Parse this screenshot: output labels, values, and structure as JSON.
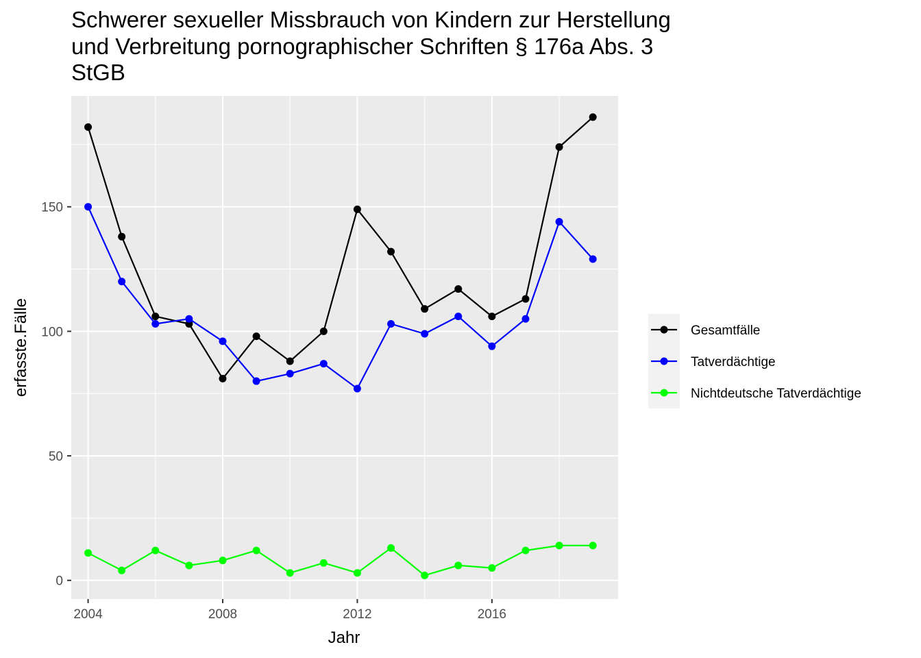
{
  "chart_data": {
    "type": "line",
    "title_lines": [
      "Schwerer sexueller Missbrauch von Kindern zur Herstellung",
      "und Verbreitung pornographischer Schriften § 176a Abs. 3",
      "StGB"
    ],
    "xlabel": "Jahr",
    "ylabel": "erfasste.Fälle",
    "x": [
      2004,
      2005,
      2006,
      2007,
      2008,
      2009,
      2010,
      2011,
      2012,
      2013,
      2014,
      2015,
      2016,
      2017,
      2018,
      2019
    ],
    "x_ticks": [
      2004,
      2008,
      2012,
      2016
    ],
    "y_ticks": [
      0,
      50,
      100,
      150
    ],
    "xlim": [
      2003.5,
      2019.75
    ],
    "ylim": [
      -7.5,
      194.5
    ],
    "grid": true,
    "legend_position": "right",
    "series": [
      {
        "name": "Gesamtfälle",
        "color": "#000000",
        "values": [
          182,
          138,
          106,
          103,
          81,
          98,
          88,
          100,
          149,
          132,
          109,
          117,
          106,
          113,
          174,
          186
        ]
      },
      {
        "name": "Tatverdächtige",
        "color": "#0000ff",
        "values": [
          150,
          120,
          103,
          105,
          96,
          80,
          83,
          87,
          77,
          103,
          99,
          106,
          94,
          105,
          144,
          129
        ]
      },
      {
        "name": "Nichtdeutsche Tatverdächtige",
        "color": "#00ff00",
        "values": [
          11,
          4,
          12,
          6,
          8,
          12,
          3,
          7,
          3,
          13,
          2,
          6,
          5,
          12,
          14,
          14
        ]
      }
    ]
  }
}
